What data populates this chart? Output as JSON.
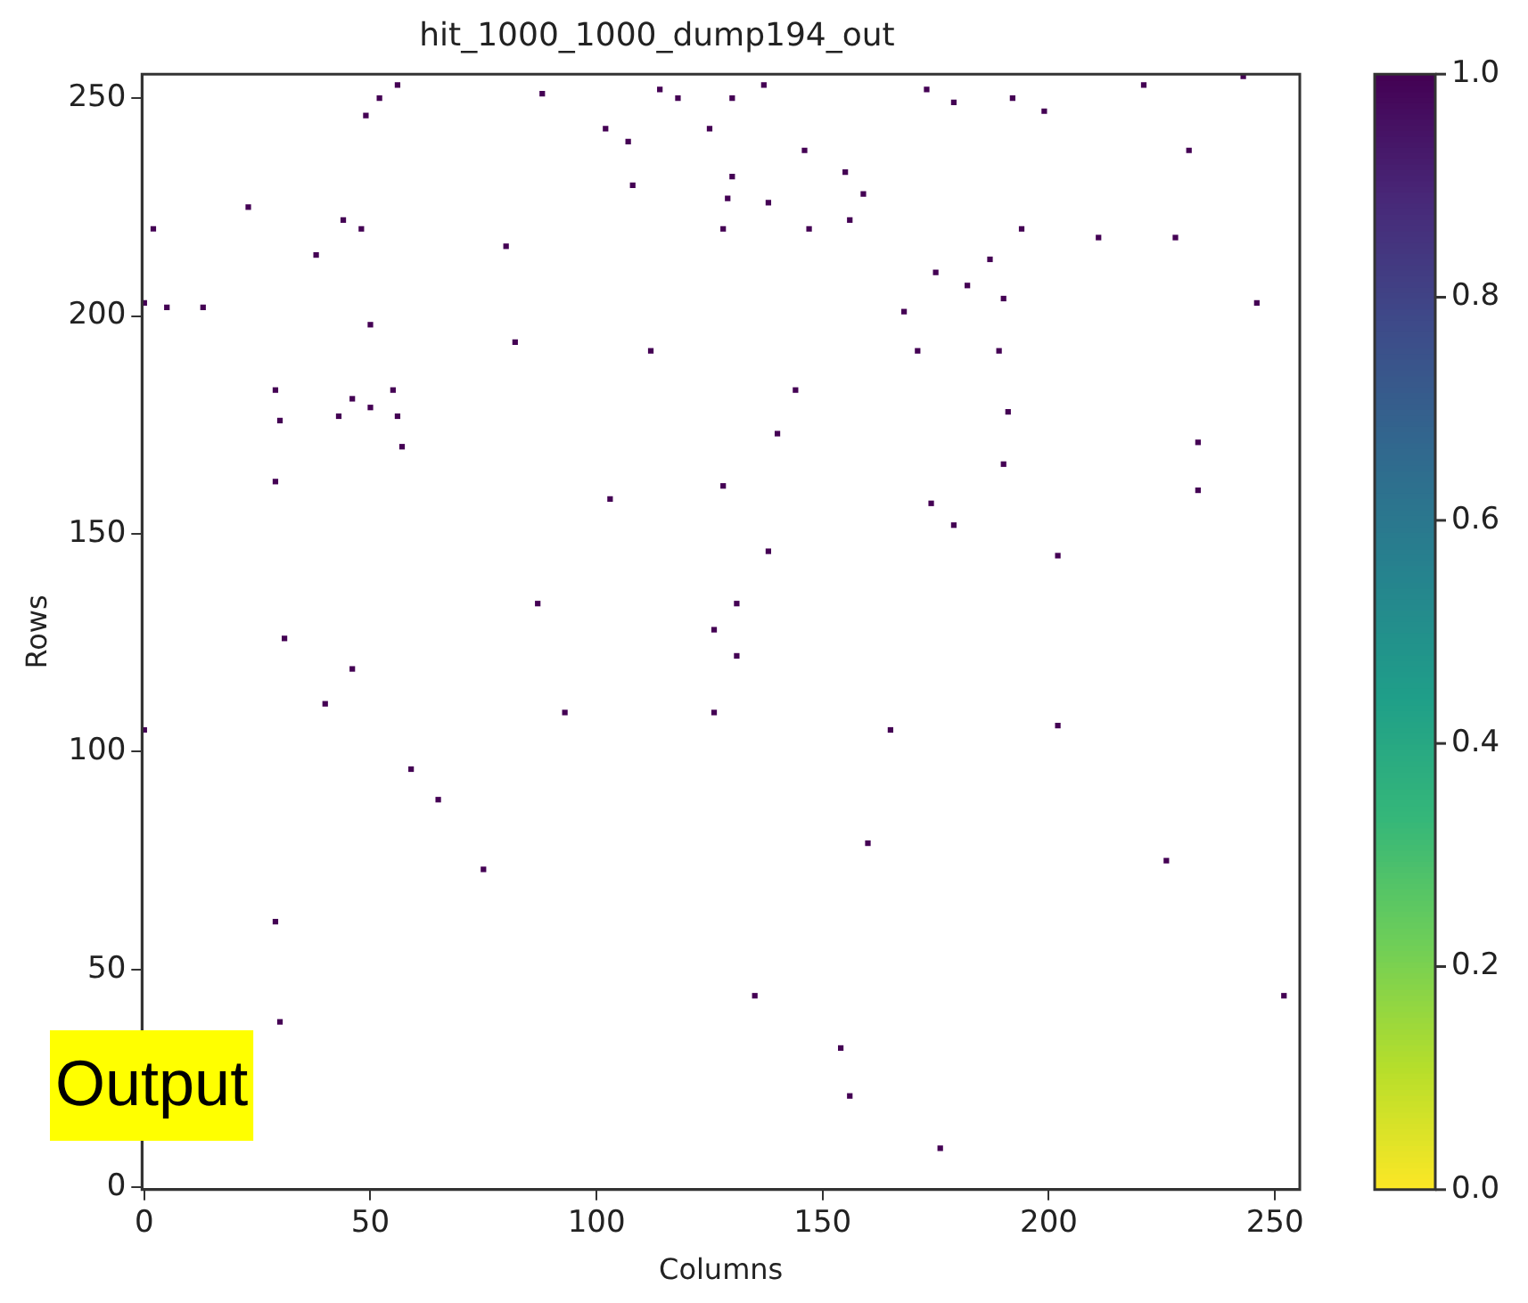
{
  "chart_data": {
    "type": "scatter",
    "title": "hit_1000_1000_dump194_out",
    "xlabel": "Columns",
    "ylabel": "Rows",
    "marker": "square",
    "grid": false,
    "x": [
      137,
      130,
      125,
      173,
      179,
      192,
      199,
      221,
      243,
      231,
      146,
      155,
      159,
      130,
      129,
      138,
      128,
      147,
      156,
      194,
      211,
      228,
      187,
      175,
      182,
      190,
      246,
      168,
      171,
      189,
      144,
      140,
      191,
      233,
      190,
      233,
      128,
      174,
      179,
      202,
      138,
      131,
      126,
      56,
      52,
      49,
      88,
      114,
      118,
      102,
      107,
      108,
      2,
      23,
      44,
      48,
      38,
      80,
      0,
      5,
      13,
      50,
      82,
      112,
      29,
      55,
      46,
      43,
      50,
      56,
      30,
      57,
      29,
      103,
      87,
      31,
      46,
      40,
      93,
      126,
      0,
      59,
      65,
      75,
      29,
      30,
      131,
      165,
      202,
      160,
      226,
      135,
      252,
      154,
      156,
      176
    ],
    "values": [
      253,
      250,
      243,
      252,
      249,
      250,
      247,
      253,
      255,
      238,
      238,
      233,
      228,
      232,
      227,
      226,
      220,
      220,
      222,
      220,
      218,
      218,
      213,
      210,
      207,
      204,
      203,
      201,
      192,
      192,
      183,
      173,
      178,
      171,
      166,
      160,
      161,
      157,
      152,
      145,
      146,
      134,
      128,
      253,
      250,
      246,
      251,
      252,
      250,
      243,
      240,
      230,
      220,
      225,
      222,
      220,
      214,
      216,
      203,
      202,
      202,
      198,
      194,
      192,
      183,
      183,
      181,
      177,
      179,
      177,
      176,
      170,
      162,
      158,
      134,
      126,
      119,
      111,
      109,
      109,
      105,
      96,
      89,
      73,
      61,
      38,
      122,
      105,
      106,
      79,
      75,
      44,
      44,
      32,
      21,
      9
    ],
    "cvalues": [
      1,
      1,
      1,
      1,
      1,
      1,
      1,
      1,
      1,
      1,
      1,
      1,
      1,
      1,
      1,
      1,
      1,
      1,
      1,
      1,
      1,
      1,
      1,
      1,
      1,
      1,
      1,
      1,
      1,
      1,
      1,
      1,
      1,
      1,
      1,
      1,
      1,
      1,
      1,
      1,
      1,
      1,
      1,
      1,
      1,
      1,
      1,
      1,
      1,
      1,
      1,
      1,
      1,
      1,
      1,
      1,
      1,
      1,
      1,
      1,
      1,
      1,
      1,
      1,
      1,
      1,
      1,
      1,
      1,
      1,
      1,
      1,
      1,
      1,
      1,
      1,
      1,
      1,
      1,
      1,
      1,
      1,
      1,
      1,
      1,
      1,
      1,
      1,
      1,
      1,
      1,
      1,
      1,
      1,
      1,
      1
    ],
    "xlim": [
      -0.5,
      255.5
    ],
    "ylim": [
      -0.5,
      255.5
    ],
    "xticks": [
      0,
      50,
      100,
      150,
      200,
      250
    ],
    "yticks": [
      0,
      50,
      100,
      150,
      200,
      250
    ],
    "clim": [
      0,
      1
    ],
    "cticks": [
      {
        "value": 0,
        "label": "0.0"
      },
      {
        "value": 0.2,
        "label": "0.2"
      },
      {
        "value": 0.4,
        "label": "0.4"
      },
      {
        "value": 0.6,
        "label": "0.6"
      },
      {
        "value": 0.8,
        "label": "0.8"
      },
      {
        "value": 1,
        "label": "1.0"
      }
    ],
    "annotations": [
      "Output"
    ]
  }
}
